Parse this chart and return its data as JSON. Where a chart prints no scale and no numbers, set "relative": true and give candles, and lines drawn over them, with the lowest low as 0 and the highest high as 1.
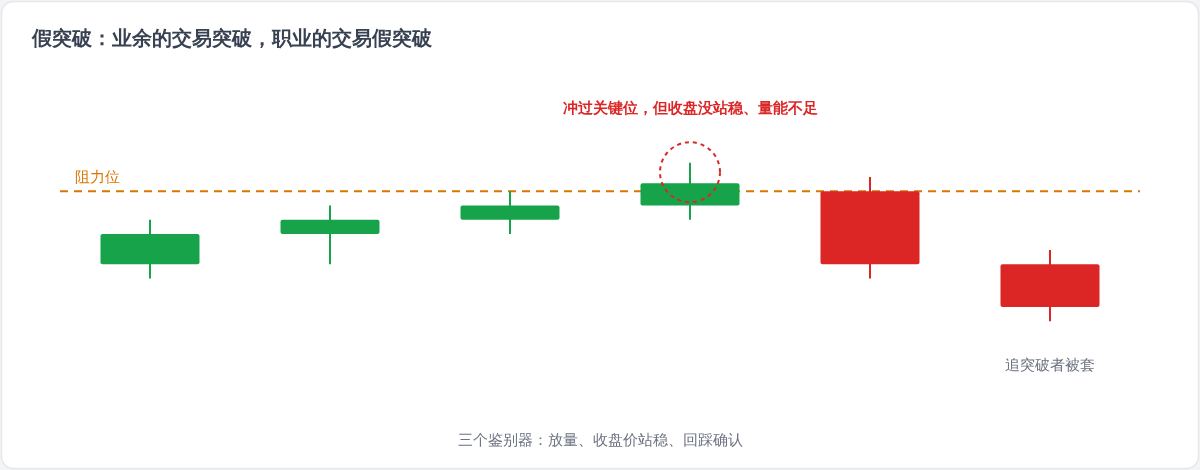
{
  "chart_data": {
    "type": "candlestick",
    "title": "假突破：业余的交易突破，职业的交易假突破",
    "categories": [
      null,
      null,
      null,
      null,
      null,
      null
    ],
    "ohlc": [
      [
        0.36,
        0.64,
        0.27,
        0.55
      ],
      [
        0.55,
        0.73,
        0.36,
        0.64
      ],
      [
        0.64,
        0.82,
        0.55,
        0.73
      ],
      [
        0.73,
        1,
        0.64,
        0.87
      ],
      [
        0.82,
        0.91,
        0.27,
        0.36
      ],
      [
        0.36,
        0.45,
        0,
        0.09
      ]
    ],
    "colors": [
      "#16a34a",
      "#16a34a",
      "#16a34a",
      "#16a34a",
      "#dc2626",
      "#dc2626"
    ],
    "relative": true,
    "ref_lines": [
      {
        "axis": "y",
        "value": 0.82,
        "label": "阻力位",
        "color": "#d97706",
        "line_style": "dashed"
      }
    ],
    "annotations": [
      "冲过关键位，但收盘没站稳、量能不足",
      "追突破者被套",
      "三个鉴别器：放量、收盘价站稳、回踩确认"
    ]
  }
}
